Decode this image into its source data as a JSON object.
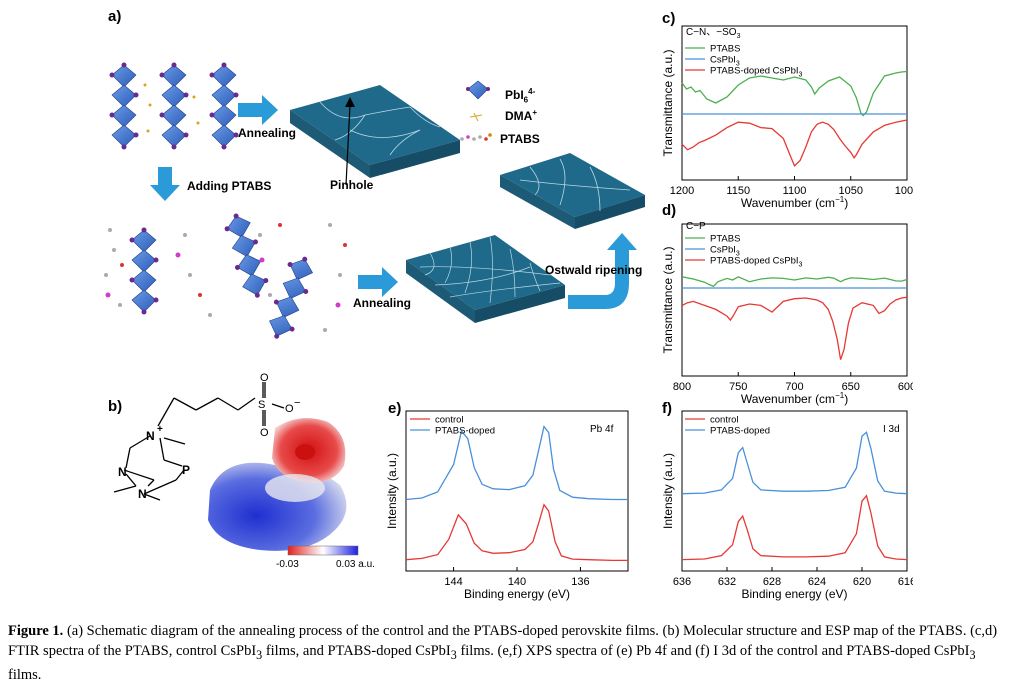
{
  "panel_a": {
    "label": "a)",
    "annealing_top": "Annealing",
    "pinhole": "Pinhole",
    "adding": "Adding PTABS",
    "annealing_bottom": "Annealing",
    "ostwald": "Ostwald ripening",
    "legend": {
      "pbi6": "PbI",
      "pbi6_sub": "6",
      "pbi6_sup": "4-",
      "dma": "DMA",
      "dma_sup": "+",
      "ptabs": "PTABS"
    },
    "colors": {
      "octahedron": "#3b6fc9",
      "film": "#1f5f7e",
      "arrow": "#2a9bd8"
    }
  },
  "panel_b": {
    "label": "b)",
    "atoms": {
      "n_plus": "N",
      "plus": "+",
      "n1": "N",
      "n2": "N",
      "p": "P",
      "s": "S",
      "o1": "O",
      "o2": "O",
      "o_minus": "O",
      "minus": "−"
    },
    "colorbar": {
      "min": "-0.03",
      "max": "0.03 a.u."
    }
  },
  "panel_c": {
    "label": "c)",
    "annotation": "C−N、−SO",
    "annotation_sub": "3"
  },
  "panel_d": {
    "label": "d)",
    "annotation": "C−P"
  },
  "panel_e": {
    "label": "e)",
    "annotation": "Pb 4f"
  },
  "panel_f": {
    "label": "f)",
    "annotation": "I 3d"
  },
  "caption": {
    "fig": "Figure 1.",
    "text1": " (a) Schematic diagram of the annealing process of the control and the PTABS-doped perovskite films. (b) Molecular structure and ESP map of the PTABS. (c,d) FTIR spectra of the PTABS, control CsPbI",
    "s1": "3",
    "text2": " films, and PTABS-doped CsPbI",
    "s2": "3",
    "text3": " films. (e,f) XPS spectra of (e) Pb 4f and (f) I 3d of the control and PTABS-doped CsPbI",
    "s3": "3",
    "text4": " films."
  },
  "chart_data": [
    {
      "type": "line",
      "panel": "c",
      "xlabel": "Wavenumber (cm",
      "xlabel_sup": "−1",
      "xlabel_end": ")",
      "ylabel": "Transmittance (a.u.)",
      "xlim": [
        1200,
        1000
      ],
      "xticks": [
        1200,
        1150,
        1100,
        1050,
        1000
      ],
      "legend_pos": "top-left",
      "series": [
        {
          "name": "PTABS",
          "name_sub": "",
          "color": "#4caf50",
          "x": [
            1200,
            1196,
            1192,
            1188,
            1184,
            1178,
            1170,
            1160,
            1150,
            1140,
            1130,
            1120,
            1110,
            1100,
            1090,
            1085,
            1082,
            1078,
            1070,
            1060,
            1050,
            1045,
            1041,
            1039,
            1036,
            1030,
            1020,
            1010,
            1005,
            1000
          ],
          "y": [
            0.7,
            0.58,
            0.62,
            0.52,
            0.55,
            0.38,
            0.3,
            0.42,
            0.66,
            0.8,
            0.84,
            0.8,
            0.76,
            0.82,
            0.76,
            0.62,
            0.48,
            0.6,
            0.74,
            0.82,
            0.64,
            0.4,
            0.1,
            0.05,
            0.12,
            0.5,
            0.84,
            0.9,
            0.92,
            0.93
          ]
        },
        {
          "name": "CsPbI",
          "name_sub": "3",
          "color": "#4a90d9",
          "x": [
            1200,
            1000
          ],
          "y": [
            0.5,
            0.5
          ]
        },
        {
          "name": "PTABS-doped CsPbI",
          "name_sub": "3",
          "color": "#e53935",
          "x": [
            1200,
            1195,
            1190,
            1185,
            1180,
            1170,
            1160,
            1150,
            1140,
            1130,
            1120,
            1110,
            1105,
            1100,
            1095,
            1090,
            1085,
            1080,
            1075,
            1070,
            1065,
            1060,
            1055,
            1050,
            1047,
            1045,
            1040,
            1030,
            1020,
            1010,
            1005,
            1000
          ],
          "y": [
            0.55,
            0.45,
            0.5,
            0.58,
            0.62,
            0.72,
            0.86,
            0.96,
            0.94,
            0.86,
            0.84,
            0.66,
            0.4,
            0.15,
            0.25,
            0.5,
            0.78,
            0.92,
            0.96,
            0.92,
            0.82,
            0.66,
            0.52,
            0.4,
            0.3,
            0.36,
            0.55,
            0.78,
            0.9,
            0.96,
            0.98,
            1.0
          ]
        }
      ]
    },
    {
      "type": "line",
      "panel": "d",
      "xlabel": "Wavenumber (cm",
      "xlabel_sup": "−1",
      "xlabel_end": ")",
      "ylabel": "Transmittance (a.u.)",
      "xlim": [
        800,
        600
      ],
      "xticks": [
        800,
        750,
        700,
        650,
        600
      ],
      "legend_pos": "top-left",
      "series": [
        {
          "name": "PTABS",
          "name_sub": "",
          "color": "#4caf50",
          "x": [
            800,
            790,
            780,
            775,
            772,
            768,
            760,
            755,
            750,
            740,
            730,
            720,
            710,
            700,
            690,
            680,
            670,
            665,
            662,
            659,
            655,
            650,
            640,
            630,
            620,
            610,
            605,
            600
          ],
          "y": [
            0.6,
            0.52,
            0.4,
            0.3,
            0.25,
            0.42,
            0.54,
            0.48,
            0.6,
            0.42,
            0.52,
            0.56,
            0.54,
            0.48,
            0.56,
            0.52,
            0.58,
            0.55,
            0.48,
            0.42,
            0.5,
            0.56,
            0.54,
            0.5,
            0.55,
            0.45,
            0.44,
            0.5
          ]
        },
        {
          "name": "CsPbI",
          "name_sub": "3",
          "color": "#4a90d9",
          "x": [
            800,
            600
          ],
          "y": [
            0.5,
            0.5
          ]
        },
        {
          "name": "PTABS-doped CsPbI",
          "name_sub": "3",
          "color": "#e53935",
          "x": [
            800,
            795,
            790,
            780,
            770,
            760,
            757,
            754,
            750,
            740,
            730,
            720,
            710,
            700,
            690,
            680,
            675,
            670,
            666,
            662,
            659,
            656,
            652,
            648,
            640,
            630,
            625,
            620,
            615,
            610,
            605,
            600
          ],
          "y": [
            0.86,
            0.9,
            0.92,
            0.86,
            0.8,
            0.7,
            0.64,
            0.72,
            0.84,
            0.88,
            0.86,
            0.76,
            0.92,
            0.96,
            0.97,
            0.94,
            0.9,
            0.8,
            0.62,
            0.35,
            0.05,
            0.2,
            0.6,
            0.82,
            0.9,
            0.86,
            0.74,
            0.78,
            0.88,
            0.94,
            0.97,
            0.98
          ]
        }
      ]
    },
    {
      "type": "line",
      "panel": "e",
      "xlabel": "Binding energy (eV)",
      "ylabel": "Intensity (a.u.)",
      "xlim": [
        147,
        133
      ],
      "xticks": [
        144,
        140,
        136
      ],
      "legend_pos": "top-left",
      "series": [
        {
          "name": "control",
          "color": "#e53935",
          "x": [
            147,
            146,
            145,
            144.3,
            143.7,
            143.2,
            142.7,
            142.2,
            141.5,
            140.5,
            139.5,
            139.0,
            138.6,
            138.3,
            138.0,
            137.6,
            137.2,
            136.5,
            135.5,
            134,
            133
          ],
          "y": [
            0.02,
            0.04,
            0.1,
            0.34,
            0.72,
            0.58,
            0.28,
            0.16,
            0.12,
            0.13,
            0.18,
            0.3,
            0.62,
            0.88,
            0.78,
            0.3,
            0.08,
            0.03,
            0.02,
            0.01,
            0.01
          ]
        },
        {
          "name": "PTABS-doped",
          "color": "#4a90d9",
          "x": [
            147,
            146,
            145,
            144.0,
            143.5,
            143.1,
            142.7,
            142.2,
            141.5,
            140.5,
            139.5,
            139.0,
            138.6,
            138.3,
            138.0,
            137.7,
            137.3,
            136.5,
            135.5,
            134,
            133
          ],
          "y": [
            0.02,
            0.04,
            0.12,
            0.48,
            0.92,
            0.82,
            0.44,
            0.22,
            0.16,
            0.15,
            0.2,
            0.34,
            0.7,
            0.98,
            0.9,
            0.42,
            0.14,
            0.05,
            0.03,
            0.02,
            0.02
          ]
        }
      ]
    },
    {
      "type": "line",
      "panel": "f",
      "xlabel": "Binding energy (eV)",
      "ylabel": "Intensity (a.u.)",
      "xlim": [
        636,
        616
      ],
      "xticks": [
        636,
        632,
        628,
        624,
        620,
        616
      ],
      "legend_pos": "top-left",
      "series": [
        {
          "name": "control",
          "color": "#e53935",
          "x": [
            636,
            634,
            632.5,
            631.5,
            631.0,
            630.6,
            630.2,
            629.7,
            629,
            627,
            625,
            623,
            621.5,
            620.5,
            620.0,
            619.6,
            619.2,
            618.6,
            618,
            617,
            616
          ],
          "y": [
            0.02,
            0.03,
            0.08,
            0.24,
            0.58,
            0.66,
            0.46,
            0.18,
            0.08,
            0.06,
            0.06,
            0.07,
            0.12,
            0.4,
            0.88,
            0.96,
            0.7,
            0.22,
            0.06,
            0.03,
            0.02
          ]
        },
        {
          "name": "PTABS-doped",
          "color": "#4a90d9",
          "x": [
            636,
            634,
            632.5,
            631.5,
            631.0,
            630.6,
            630.2,
            629.7,
            629,
            627,
            625,
            623,
            621.5,
            620.5,
            620.0,
            619.6,
            619.2,
            618.6,
            618,
            617,
            616
          ],
          "y": [
            0.02,
            0.03,
            0.08,
            0.26,
            0.66,
            0.74,
            0.5,
            0.2,
            0.08,
            0.06,
            0.06,
            0.07,
            0.12,
            0.42,
            0.92,
            0.98,
            0.72,
            0.22,
            0.06,
            0.03,
            0.02
          ]
        }
      ]
    }
  ]
}
